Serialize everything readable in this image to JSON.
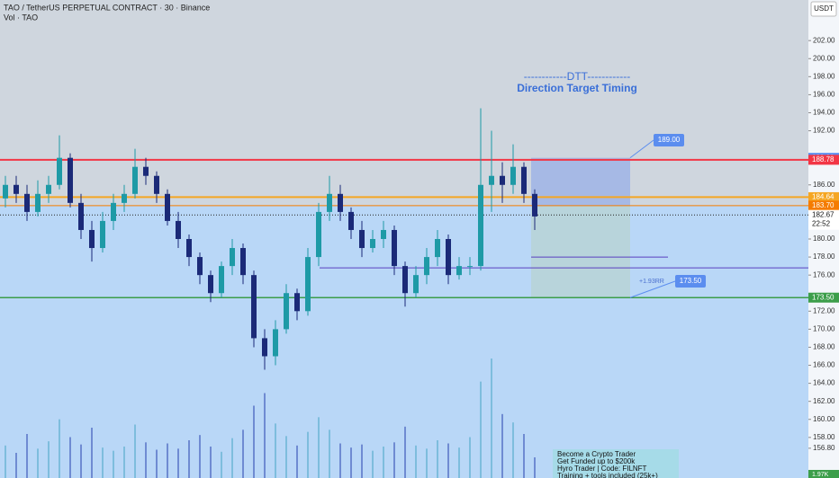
{
  "chart_data": {
    "type": "candlestick",
    "title": "TAO / TetherUS PERPETUAL CONTRACT · 30 · Binance",
    "subtitle": "Vol · TAO",
    "currency": "USDT",
    "annotations": {
      "dtt": "------------DTT------------",
      "dtt_sub": "Direction Target Timing",
      "rr": "+1.93RR",
      "countdown": "22:52"
    },
    "ad": [
      "Become a Crypto Trader",
      "Get Funded up to $200k",
      "Hyro Trader  |  Code: FILNFT",
      "Training + tools included (25k+)"
    ],
    "ylim": [
      153.5,
      206.5
    ],
    "yticks": [
      {
        "value": 202,
        "label": "202.00"
      },
      {
        "value": 200,
        "label": "200.00"
      },
      {
        "value": 198,
        "label": "198.00"
      },
      {
        "value": 196,
        "label": "196.00"
      },
      {
        "value": 194,
        "label": "194.00"
      },
      {
        "value": 192,
        "label": "192.00"
      },
      {
        "value": 186,
        "label": "186.00"
      },
      {
        "value": 180,
        "label": "180.00"
      },
      {
        "value": 178,
        "label": "178.00"
      },
      {
        "value": 176,
        "label": "176.00"
      },
      {
        "value": 172,
        "label": "172.00"
      },
      {
        "value": 170,
        "label": "170.00"
      },
      {
        "value": 168,
        "label": "168.00"
      },
      {
        "value": 166,
        "label": "166.00"
      },
      {
        "value": 164,
        "label": "164.00"
      },
      {
        "value": 162,
        "label": "162.00"
      },
      {
        "value": 160,
        "label": "160.00"
      },
      {
        "value": 158,
        "label": "158.00"
      },
      {
        "value": 156.8,
        "label": "156.80"
      }
    ],
    "levels": [
      {
        "value": 189,
        "label": "189.00",
        "color": "#5b8def"
      },
      {
        "value": 188.78,
        "label": "188.78",
        "color": "#f23645"
      },
      {
        "value": 184.64,
        "label": "184.64",
        "color": "#f5a623"
      },
      {
        "value": 183.7,
        "label": "183.70",
        "color": "#f57c00"
      },
      {
        "value": 182.67,
        "label": "182.67",
        "color": "#222222"
      },
      {
        "value": 173.5,
        "label": "173.50",
        "color": "#3c9e4a"
      }
    ],
    "purple_lines": [
      178,
      176.8
    ],
    "position": {
      "top": 189,
      "entry": 183.7,
      "bottom": 173.5
    },
    "up_color": "#1e9aa6",
    "down_color": "#1b2a78",
    "open": [
      184.5,
      186,
      185,
      183,
      185,
      186,
      189,
      184,
      181,
      179,
      182,
      184,
      185,
      188,
      187,
      185,
      182,
      180,
      178,
      176,
      174,
      177,
      179,
      176,
      169,
      167,
      170,
      174,
      172,
      178,
      183,
      185,
      183,
      181,
      179,
      180,
      181,
      177,
      174,
      176,
      178,
      180,
      176,
      177,
      177,
      186,
      187,
      186,
      188,
      185
    ],
    "high": [
      187,
      187,
      186,
      186.5,
      187,
      191.5,
      189.5,
      185,
      182,
      183,
      185,
      186,
      190,
      189,
      187.5,
      185.5,
      183,
      180.5,
      178.5,
      176.5,
      177.5,
      180,
      179.5,
      176.5,
      170,
      171,
      175,
      174.5,
      179,
      184,
      187,
      186,
      183.5,
      182,
      181,
      182,
      181.5,
      177.5,
      177,
      179,
      181,
      180.5,
      178,
      178,
      194.5,
      192,
      188.5,
      190.5,
      188.5,
      185.5
    ],
    "low": [
      183.5,
      184,
      182,
      182.5,
      184,
      185.5,
      183.5,
      180,
      177.5,
      178.5,
      181,
      183,
      184.5,
      186,
      184,
      181.5,
      179,
      177,
      175,
      173,
      173.5,
      176,
      175,
      168,
      165.5,
      166,
      169.5,
      171,
      171.5,
      177,
      182,
      182,
      180,
      178,
      178.5,
      179,
      176,
      172.5,
      173.5,
      175,
      177,
      175,
      175.5,
      176,
      176.5,
      183,
      184,
      185,
      184,
      181
    ],
    "close": [
      186,
      185,
      183,
      185,
      186,
      189,
      184,
      181,
      179,
      182,
      184,
      185,
      188,
      187,
      185,
      182,
      180,
      178,
      176,
      174,
      177,
      179,
      176,
      169,
      167,
      170,
      174,
      172,
      178,
      183,
      185,
      183,
      181,
      179,
      180,
      181,
      177,
      174,
      176,
      178,
      180,
      176,
      177,
      177,
      186,
      187,
      186,
      188,
      185,
      182.5
    ],
    "volume": [
      3.1,
      2.4,
      4.2,
      2.8,
      3.5,
      5.6,
      3.9,
      3.2,
      4.8,
      2.9,
      2.6,
      3.0,
      5.1,
      3.4,
      2.7,
      3.3,
      2.8,
      3.6,
      4.1,
      3.0,
      2.5,
      3.8,
      4.6,
      6.9,
      8.1,
      5.2,
      4.0,
      3.1,
      4.4,
      5.8,
      4.6,
      3.3,
      2.9,
      3.2,
      2.6,
      3.0,
      3.4,
      4.9,
      3.1,
      2.8,
      3.6,
      3.3,
      2.9,
      3.9,
      9.2,
      11.4,
      6.1,
      5.3,
      4.2,
      1.97
    ],
    "vlim": [
      0,
      12
    ],
    "volume_label": "1.97K"
  }
}
